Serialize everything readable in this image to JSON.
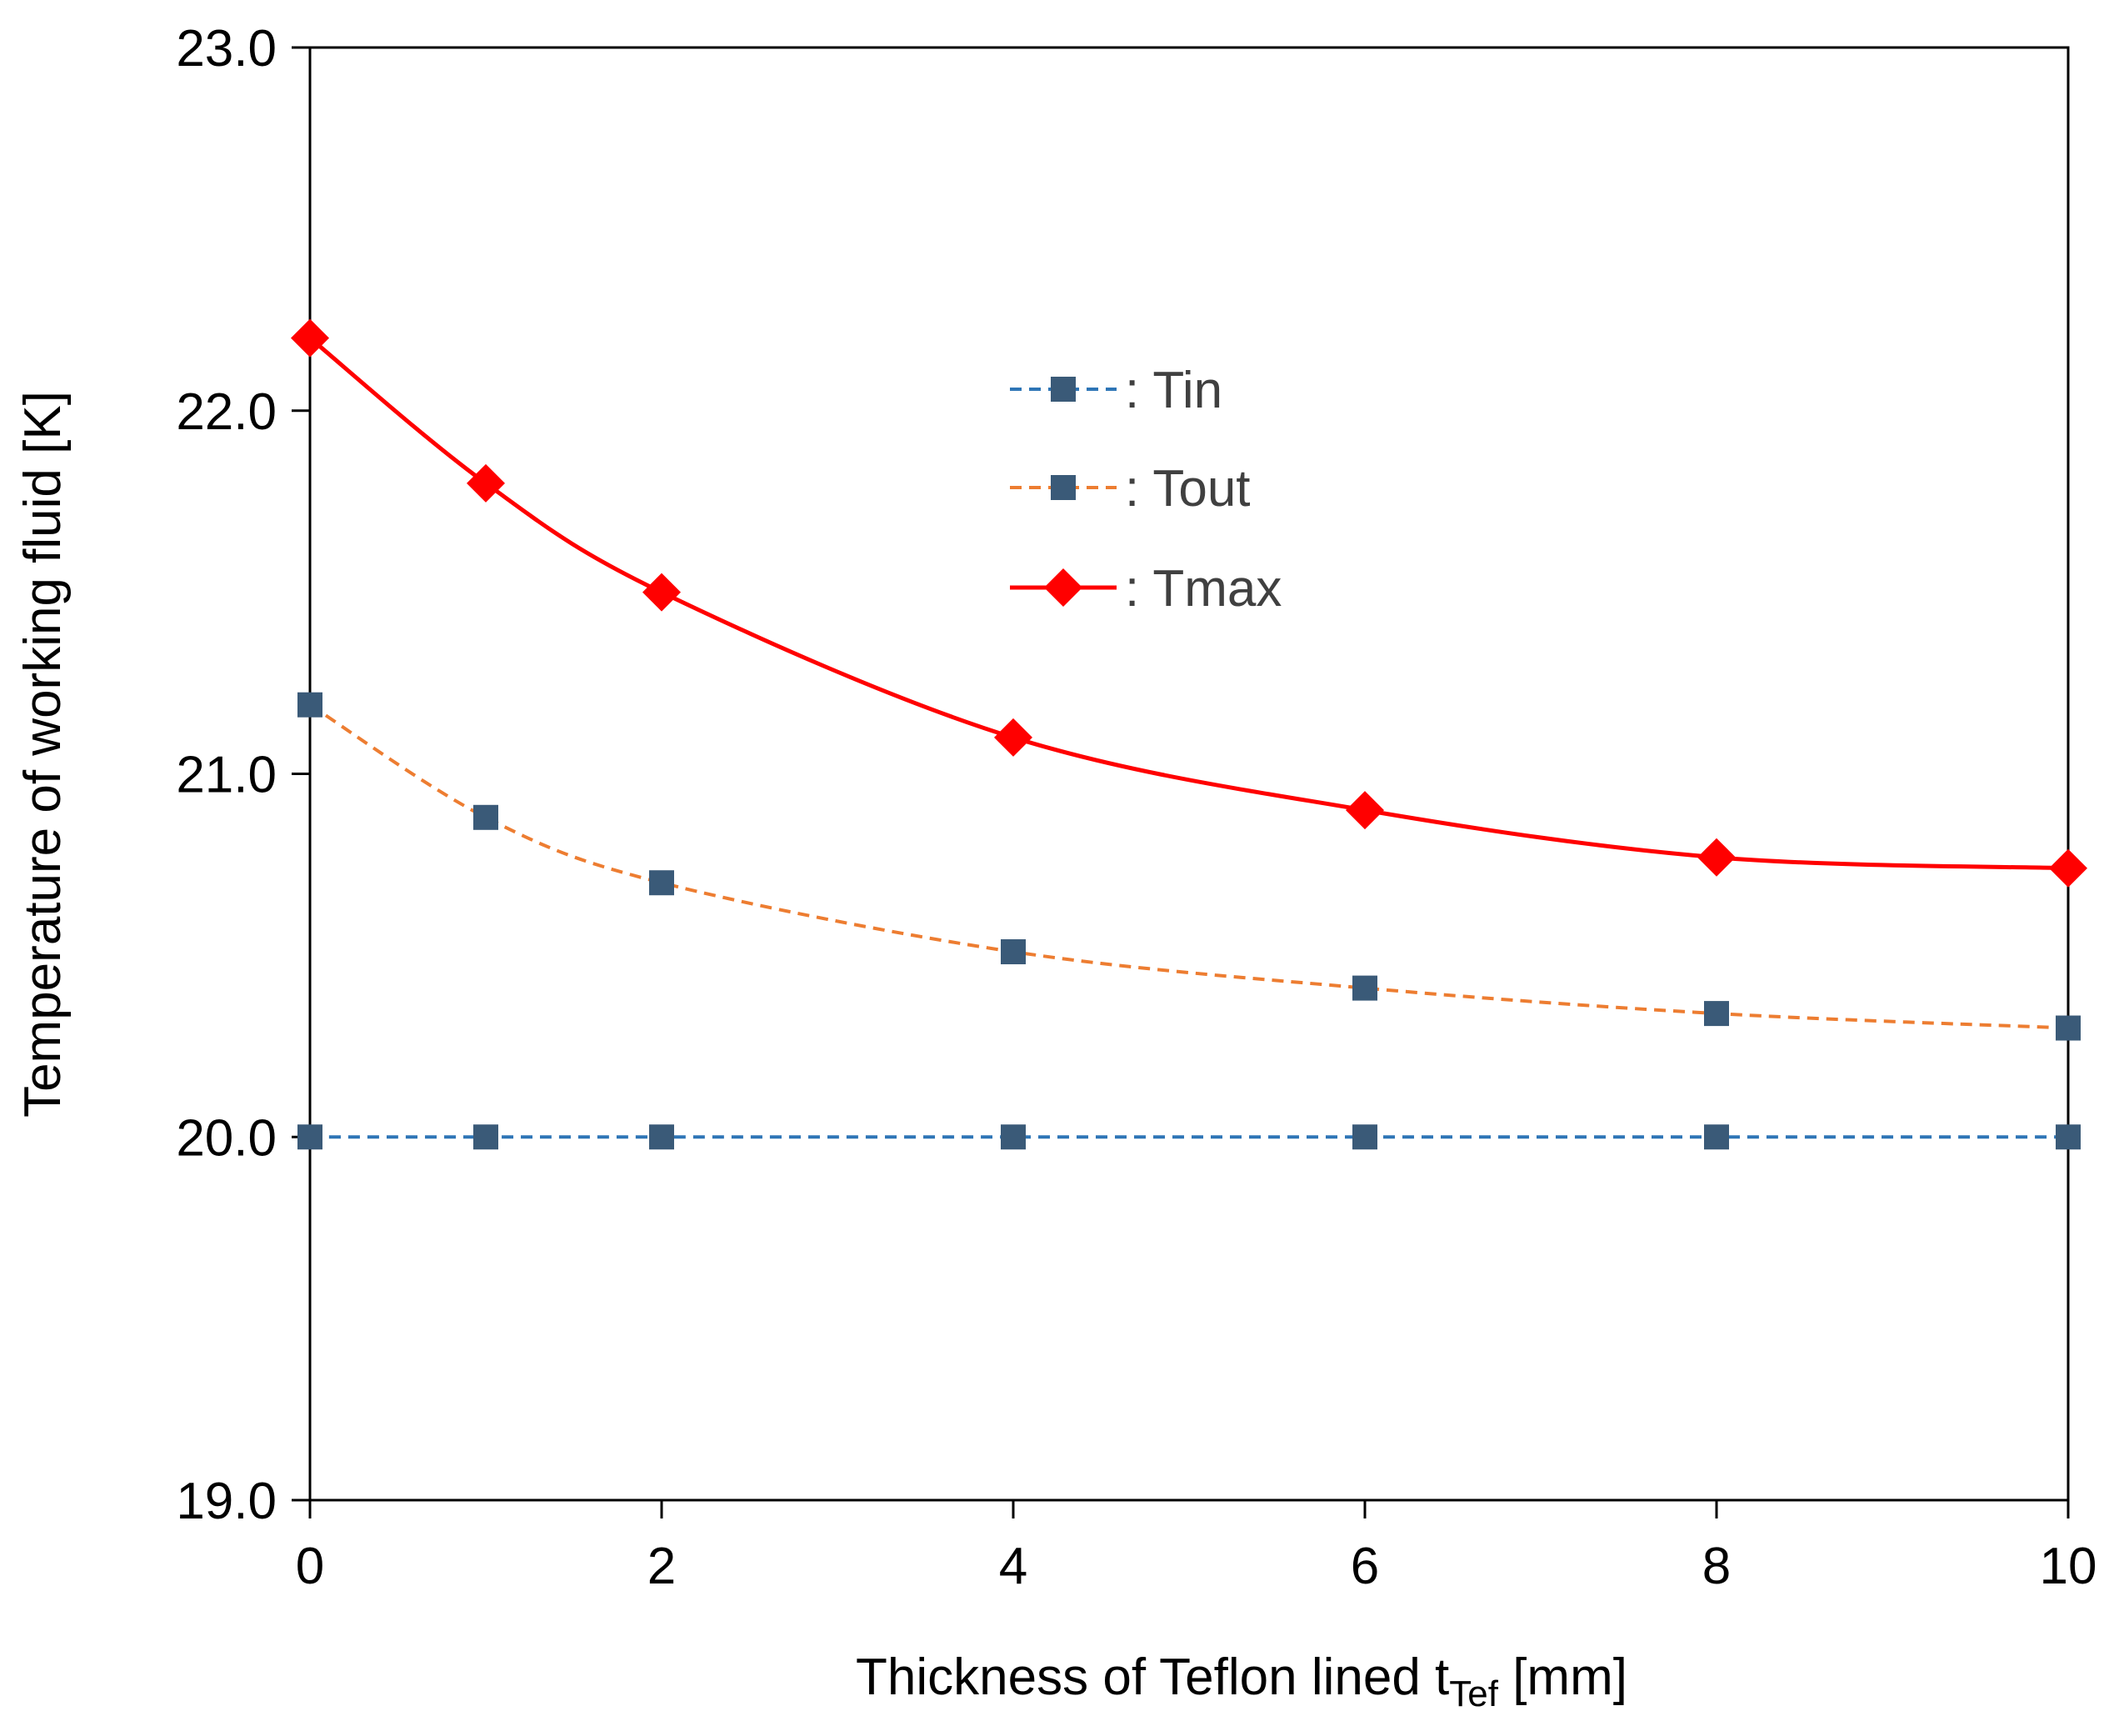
{
  "chart_data": {
    "type": "line",
    "title": "",
    "xlabel": "Thickness of Teflon lined t",
    "xlabel_sub": "Tef",
    "xlabel_suffix": " [mm]",
    "ylabel": "Temperature of working fluid [K]",
    "xlim": [
      0,
      10
    ],
    "ylim": [
      19.0,
      23.0
    ],
    "x_ticks": [
      0,
      2,
      4,
      6,
      8,
      10
    ],
    "x_tick_labels": [
      "0",
      "2",
      "4",
      "6",
      "8",
      "10"
    ],
    "y_ticks": [
      19.0,
      20.0,
      21.0,
      22.0,
      23.0
    ],
    "y_tick_labels": [
      "19.0",
      "20.0",
      "21.0",
      "22.0",
      "23.0"
    ],
    "grid": false,
    "legend_position": "upper-center",
    "x": [
      0,
      1,
      2,
      4,
      6,
      8,
      10
    ],
    "series": [
      {
        "name": ": Tin",
        "values": [
          20.0,
          20.0,
          20.0,
          20.0,
          20.0,
          20.0,
          20.0
        ],
        "color": "#2e75b6",
        "marker_color": "#3a5a78",
        "marker": "square",
        "line": "dashed"
      },
      {
        "name": ": Tout",
        "values": [
          21.19,
          20.88,
          20.7,
          20.51,
          20.41,
          20.34,
          20.3
        ],
        "color": "#ed7d31",
        "marker_color": "#3a5a78",
        "marker": "square",
        "line": "dashed"
      },
      {
        "name": ": Tmax",
        "values": [
          22.2,
          21.8,
          21.5,
          21.1,
          20.9,
          20.77,
          20.74
        ],
        "color": "#ff0000",
        "marker_color": "#ff0000",
        "marker": "diamond",
        "line": "solid"
      }
    ]
  }
}
